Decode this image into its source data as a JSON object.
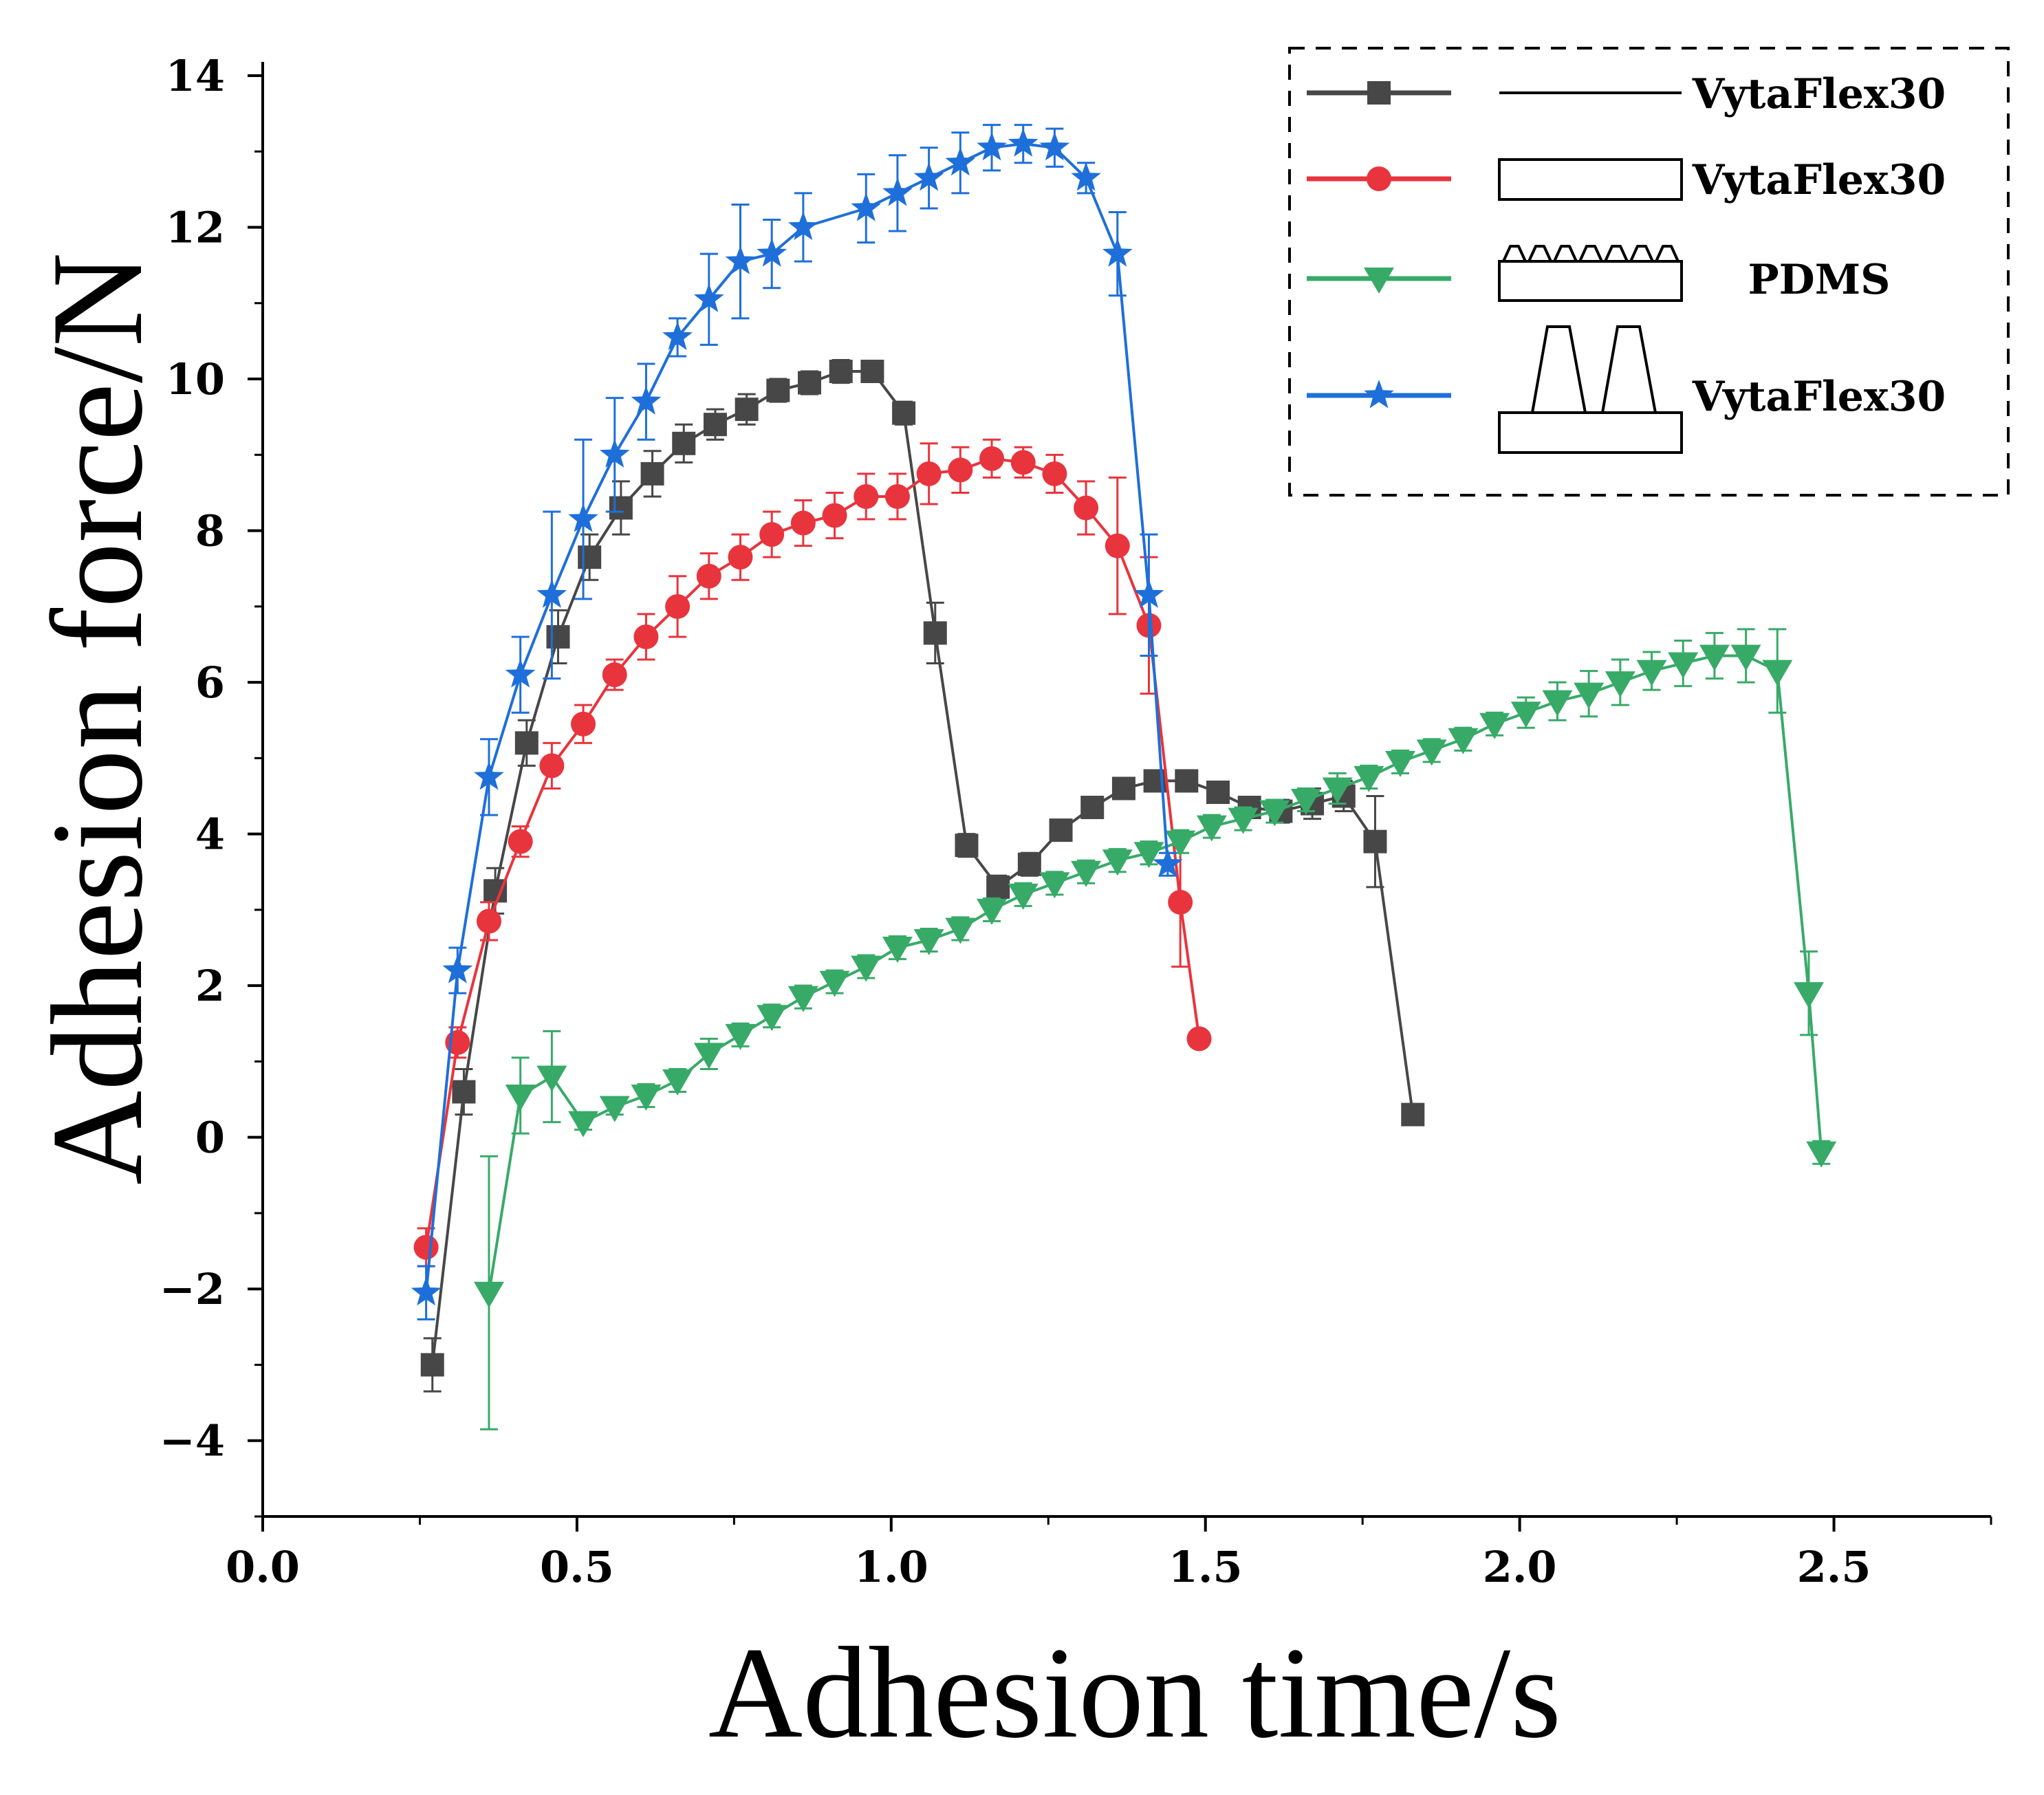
{
  "chart_data": {
    "type": "line",
    "xlabel": "Adhesion time/s",
    "ylabel": "Adhesion force/N",
    "xlim": [
      0,
      2.75
    ],
    "ylim": [
      -5,
      14
    ],
    "x_ticks": [
      0.0,
      0.5,
      1.0,
      1.5,
      2.0,
      2.5
    ],
    "x_tick_labels": [
      "0.0",
      "0.5",
      "1.0",
      "1.5",
      "2.0",
      "2.5"
    ],
    "y_ticks": [
      -4,
      -2,
      0,
      2,
      4,
      6,
      8,
      10,
      12,
      14
    ],
    "y_tick_labels": [
      "−4",
      "−2",
      "0",
      "2",
      "4",
      "6",
      "8",
      "10",
      "12",
      "14"
    ],
    "legend_position": "top-right",
    "series": [
      {
        "name": "VytaFlex30",
        "color": "#474747",
        "marker": "square",
        "legend_icon": "thin-line-icon",
        "x": [
          0.27,
          0.32,
          0.37,
          0.42,
          0.47,
          0.52,
          0.57,
          0.62,
          0.67,
          0.72,
          0.77,
          0.82,
          0.87,
          0.92,
          0.97,
          1.02,
          1.07,
          1.12,
          1.17,
          1.22,
          1.27,
          1.32,
          1.37,
          1.42,
          1.47,
          1.52,
          1.57,
          1.62,
          1.67,
          1.72,
          1.77,
          1.83
        ],
        "y": [
          -3.0,
          0.6,
          3.25,
          5.2,
          6.6,
          7.65,
          8.3,
          8.75,
          9.15,
          9.4,
          9.6,
          9.85,
          9.95,
          10.1,
          10.1,
          9.55,
          6.65,
          3.85,
          3.3,
          3.6,
          4.05,
          4.35,
          4.6,
          4.7,
          4.7,
          4.55,
          4.35,
          4.3,
          4.4,
          4.5,
          3.9,
          0.3
        ],
        "error": [
          0.35,
          0.3,
          0.3,
          0.3,
          0.35,
          0.3,
          0.35,
          0.3,
          0.25,
          0.2,
          0.2,
          0.15,
          0.15,
          0.15,
          0.1,
          0.15,
          0.4,
          0.15,
          0.15,
          0.15,
          0.1,
          0.1,
          0.1,
          0.1,
          0.1,
          0.1,
          0.1,
          0.15,
          0.2,
          0.2,
          0.6,
          0.1
        ]
      },
      {
        "name": "VytaFlex30",
        "color": "#e8343c",
        "marker": "circle",
        "legend_icon": "flat-base-icon",
        "x": [
          0.26,
          0.31,
          0.36,
          0.41,
          0.46,
          0.51,
          0.56,
          0.61,
          0.66,
          0.71,
          0.76,
          0.81,
          0.86,
          0.91,
          0.96,
          1.01,
          1.06,
          1.11,
          1.16,
          1.21,
          1.26,
          1.31,
          1.36,
          1.41,
          1.46,
          1.49
        ],
        "y": [
          -1.45,
          1.25,
          2.85,
          3.9,
          4.9,
          5.45,
          6.1,
          6.6,
          7.0,
          7.4,
          7.65,
          7.95,
          8.1,
          8.2,
          8.45,
          8.45,
          8.75,
          8.8,
          8.95,
          8.9,
          8.75,
          8.3,
          7.8,
          6.75,
          3.1,
          1.3
        ],
        "error": [
          0.25,
          0.2,
          0.25,
          0.2,
          0.3,
          0.25,
          0.2,
          0.3,
          0.4,
          0.3,
          0.3,
          0.3,
          0.3,
          0.3,
          0.3,
          0.3,
          0.4,
          0.3,
          0.25,
          0.2,
          0.25,
          0.35,
          0.9,
          0.9,
          0.85,
          0.05
        ]
      },
      {
        "name": "PDMS",
        "color": "#38aa68",
        "marker": "triangle-down",
        "legend_icon": "micro-pattern-base-icon",
        "x": [
          0.36,
          0.41,
          0.46,
          0.51,
          0.56,
          0.61,
          0.66,
          0.71,
          0.76,
          0.81,
          0.86,
          0.91,
          0.96,
          1.01,
          1.06,
          1.11,
          1.16,
          1.21,
          1.26,
          1.31,
          1.36,
          1.41,
          1.46,
          1.51,
          1.56,
          1.61,
          1.66,
          1.71,
          1.76,
          1.81,
          1.86,
          1.91,
          1.96,
          2.01,
          2.06,
          2.11,
          2.16,
          2.21,
          2.26,
          2.31,
          2.36,
          2.41,
          2.46,
          2.48
        ],
        "y": [
          -2.05,
          0.55,
          0.8,
          0.2,
          0.4,
          0.55,
          0.75,
          1.1,
          1.35,
          1.6,
          1.85,
          2.05,
          2.25,
          2.5,
          2.6,
          2.75,
          3.0,
          3.2,
          3.35,
          3.5,
          3.65,
          3.75,
          3.9,
          4.1,
          4.2,
          4.3,
          4.45,
          4.6,
          4.75,
          4.95,
          5.1,
          5.25,
          5.45,
          5.6,
          5.75,
          5.85,
          6.0,
          6.15,
          6.25,
          6.35,
          6.35,
          6.15,
          1.9,
          -0.2
        ],
        "error": [
          1.8,
          0.5,
          0.6,
          0.1,
          0.1,
          0.15,
          0.15,
          0.2,
          0.15,
          0.15,
          0.15,
          0.15,
          0.15,
          0.15,
          0.15,
          0.15,
          0.15,
          0.15,
          0.15,
          0.15,
          0.15,
          0.15,
          0.15,
          0.15,
          0.15,
          0.15,
          0.15,
          0.2,
          0.15,
          0.15,
          0.15,
          0.15,
          0.15,
          0.2,
          0.25,
          0.3,
          0.3,
          0.25,
          0.3,
          0.3,
          0.35,
          0.55,
          0.55,
          0.15
        ]
      },
      {
        "name": "VytaFlex30",
        "color": "#1e6fd9",
        "marker": "star",
        "legend_icon": "pillar-array-icon",
        "x": [
          0.26,
          0.31,
          0.36,
          0.41,
          0.46,
          0.51,
          0.56,
          0.61,
          0.66,
          0.71,
          0.76,
          0.81,
          0.86,
          0.96,
          1.01,
          1.06,
          1.11,
          1.16,
          1.21,
          1.26,
          1.31,
          1.36,
          1.41,
          1.44
        ],
        "y": [
          -2.05,
          2.2,
          4.75,
          6.1,
          7.15,
          8.15,
          9.0,
          9.7,
          10.55,
          11.05,
          11.55,
          11.65,
          12.0,
          12.25,
          12.45,
          12.65,
          12.85,
          13.05,
          13.1,
          13.05,
          12.65,
          11.65,
          7.15,
          3.6
        ],
        "error": [
          0.35,
          0.3,
          0.5,
          0.5,
          1.1,
          1.05,
          0.75,
          0.5,
          0.25,
          0.6,
          0.75,
          0.45,
          0.45,
          0.45,
          0.5,
          0.4,
          0.4,
          0.3,
          0.25,
          0.25,
          0.2,
          0.55,
          0.8,
          0.15
        ]
      }
    ]
  }
}
